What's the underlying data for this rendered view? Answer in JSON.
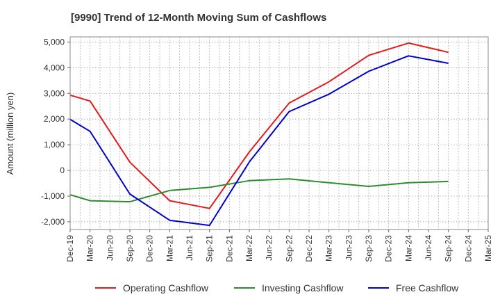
{
  "chart_data": {
    "type": "line",
    "title": "[9990]  Trend of 12-Month Moving Sum of Cashflows",
    "xlabel": "",
    "ylabel": "Amount (million yen)",
    "ylim": [
      -2300,
      5200
    ],
    "yticks": [
      -2000,
      -1000,
      0,
      1000,
      2000,
      3000,
      4000,
      5000
    ],
    "ytick_labels": [
      "-2,000",
      "-1,000",
      "0",
      "1,000",
      "2,000",
      "3,000",
      "4,000",
      "5,000"
    ],
    "categories": [
      "Dec-19",
      "Mar-20",
      "Jun-20",
      "Sep-20",
      "Dec-20",
      "Mar-21",
      "Jun-21",
      "Sep-21",
      "Dec-21",
      "Mar-22",
      "Jun-22",
      "Sep-22",
      "Dec-22",
      "Mar-23",
      "Jun-23",
      "Sep-23",
      "Dec-23",
      "Mar-24",
      "Jun-24",
      "Sep-24",
      "Dec-24",
      "Mar-25"
    ],
    "grid": true,
    "legend_position": "bottom",
    "series": [
      {
        "name": "Operating Cashflow",
        "color": "#e31a1c",
        "values": [
          2930,
          2700,
          null,
          320,
          null,
          -1180,
          null,
          -1480,
          null,
          720,
          null,
          2620,
          null,
          3450,
          null,
          4480,
          null,
          4960,
          null,
          4600,
          null,
          null
        ]
      },
      {
        "name": "Investing Cashflow",
        "color": "#2e8b2e",
        "values": [
          -950,
          -1180,
          null,
          -1220,
          null,
          -780,
          null,
          -660,
          null,
          -400,
          null,
          -330,
          null,
          -480,
          null,
          -620,
          null,
          -480,
          null,
          -430,
          null,
          null
        ]
      },
      {
        "name": "Free Cashflow",
        "color": "#0000cc",
        "values": [
          1990,
          1520,
          null,
          -920,
          null,
          -1940,
          null,
          -2140,
          null,
          330,
          null,
          2290,
          null,
          2970,
          null,
          3860,
          null,
          4460,
          null,
          4170,
          null,
          null
        ]
      }
    ]
  }
}
